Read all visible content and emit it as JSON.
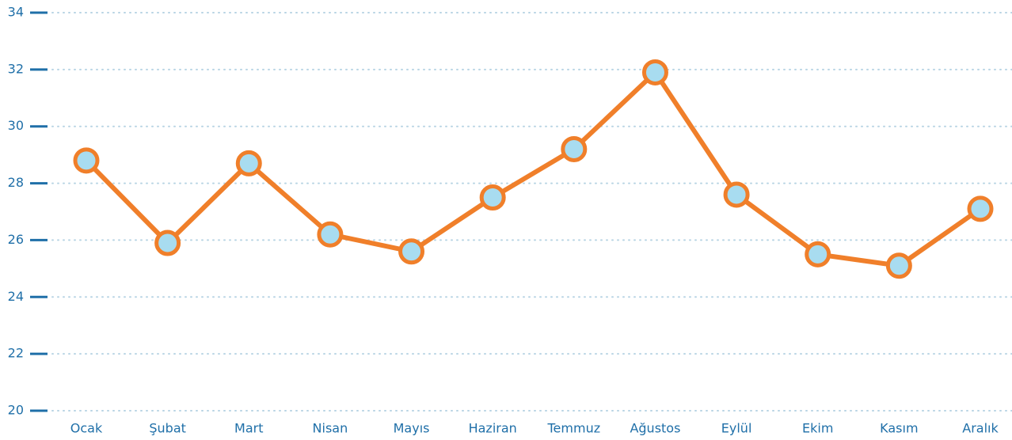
{
  "chart_data": {
    "type": "line",
    "categories": [
      "Ocak",
      "Şubat",
      "Mart",
      "Nisan",
      "Mayıs",
      "Haziran",
      "Temmuz",
      "Ağustos",
      "Eylül",
      "Ekim",
      "Kasım",
      "Aralık"
    ],
    "series": [
      {
        "color": "#f07f2a",
        "marker_color": "#a8dcf0",
        "values": [
          28.8,
          25.9,
          28.7,
          26.2,
          25.6,
          27.5,
          29.2,
          31.9,
          27.6,
          25.5,
          25.1,
          27.1
        ]
      }
    ],
    "ylim": [
      20,
      34
    ],
    "yticks": [
      20,
      22,
      24,
      26,
      28,
      30,
      32,
      34
    ],
    "grid": true
  }
}
